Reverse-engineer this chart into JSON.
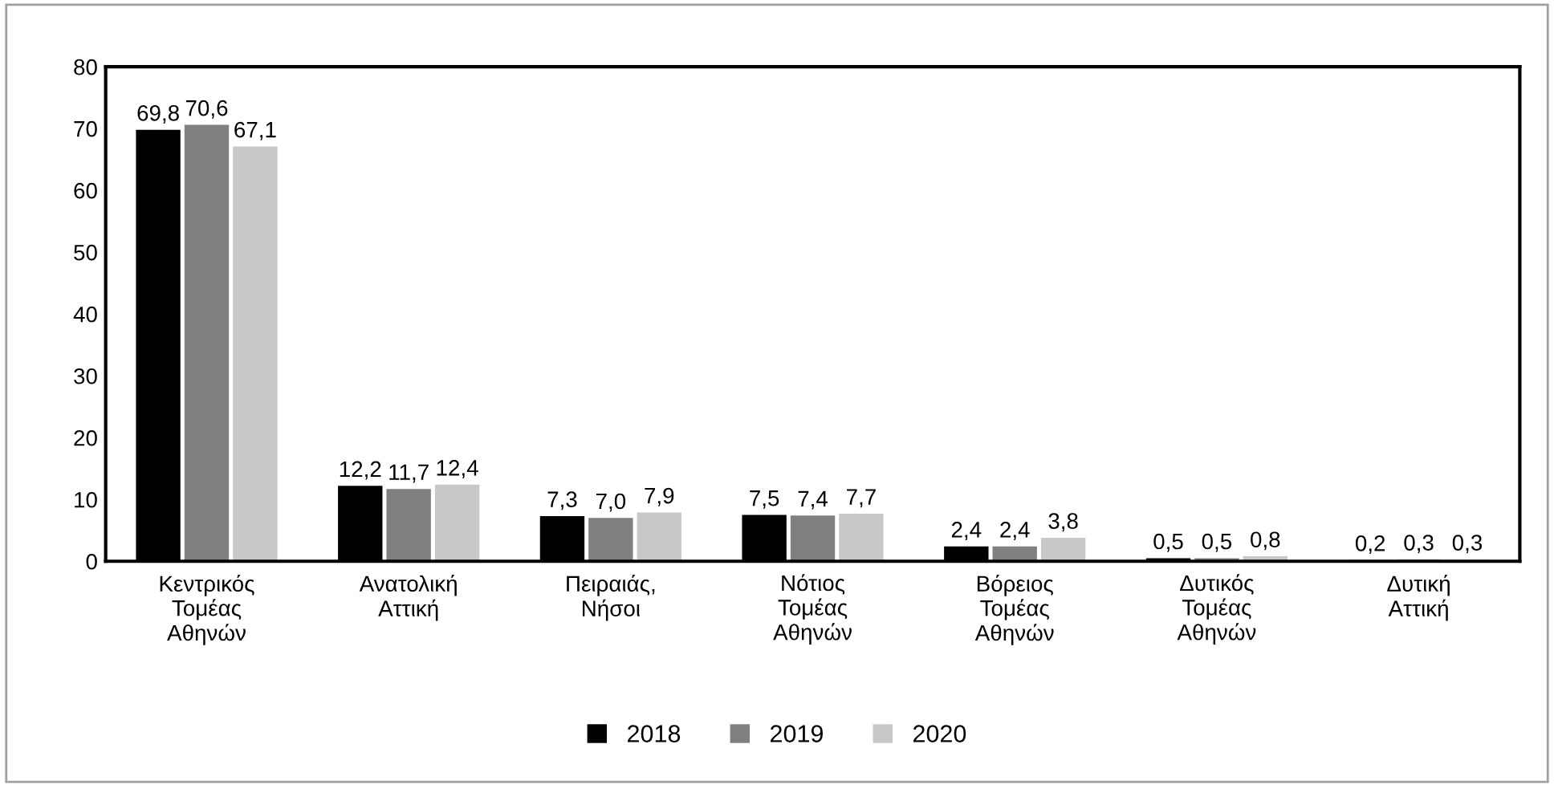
{
  "chart_data": {
    "type": "bar",
    "categories": [
      "Κεντρικός\nΤομέας\nΑθηνών",
      "Ανατολική\nΑττική",
      "Πειραιάς,\nΝήσοι",
      "Νότιος\nΤομέας\nΑθηνών",
      "Βόρειος\nΤομέας\nΑθηνών",
      "Δυτικός\nΤομέας\nΑθηνών",
      "Δυτική\nΑττική"
    ],
    "series": [
      {
        "name": "2018",
        "color": "#000000",
        "values": [
          69.8,
          12.2,
          7.3,
          7.5,
          2.4,
          0.5,
          0.2
        ],
        "value_labels": [
          "69,8",
          "12,2",
          "7,3",
          "7,5",
          "2,4",
          "0,5",
          "0,2"
        ]
      },
      {
        "name": "2019",
        "color": "#808080",
        "values": [
          70.6,
          11.7,
          7.0,
          7.4,
          2.4,
          0.5,
          0.3
        ],
        "value_labels": [
          "70,6",
          "11,7",
          "7,0",
          "7,4",
          "2,4",
          "0,5",
          "0,3"
        ]
      },
      {
        "name": "2020",
        "color": "#c8c8c8",
        "values": [
          67.1,
          12.4,
          7.9,
          7.7,
          3.8,
          0.8,
          0.3
        ],
        "value_labels": [
          "67,1",
          "12,4",
          "7,9",
          "7,7",
          "3,8",
          "0,8",
          "0,3"
        ]
      }
    ],
    "ylim": [
      0,
      80
    ],
    "yticks": [
      0,
      10,
      20,
      30,
      40,
      50,
      60,
      70,
      80
    ],
    "grid": false,
    "legend": "bottom"
  }
}
